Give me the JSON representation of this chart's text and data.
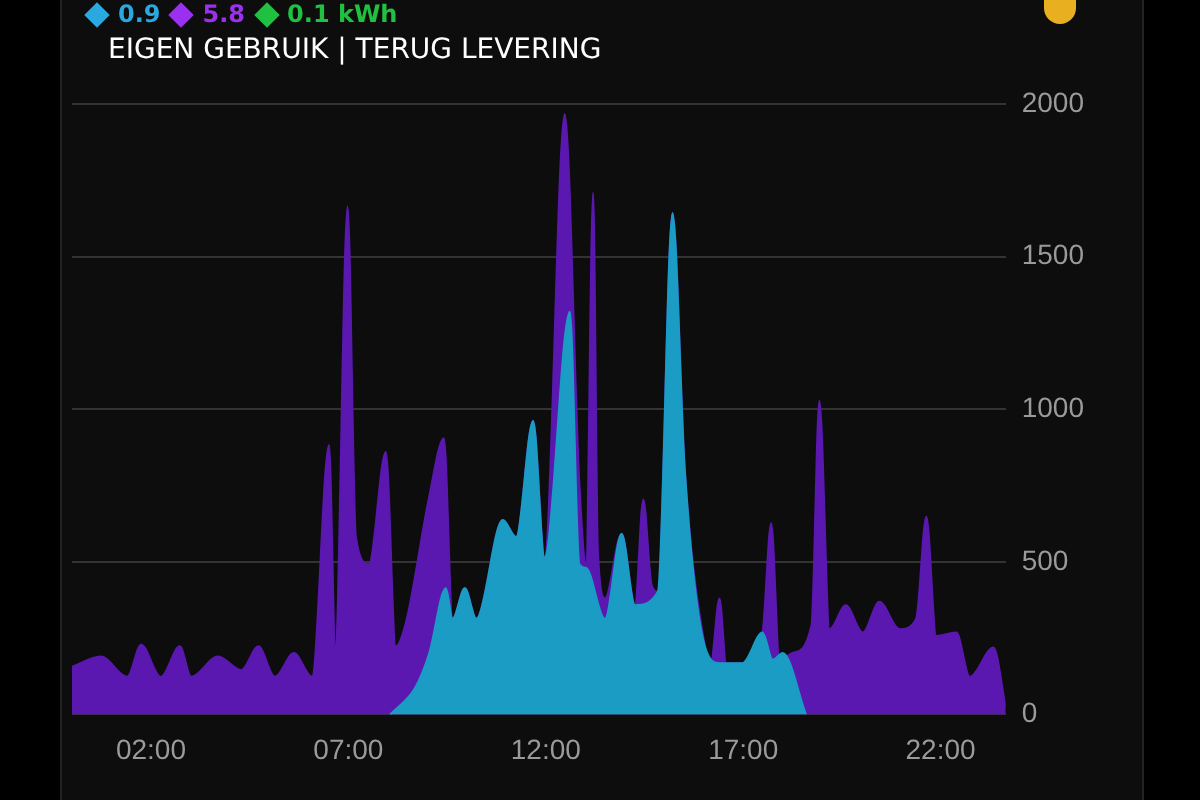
{
  "chart_data": {
    "type": "area",
    "annotations": [
      "0.9",
      "5.8",
      "0.1 kWh",
      "EIGEN GEBRUIK | TERUG LEVERING"
    ],
    "xlim": [
      0,
      23.65
    ],
    "xticks": [
      {
        "value": 2,
        "label": "02:00"
      },
      {
        "value": 7,
        "label": "07:00"
      },
      {
        "value": 12,
        "label": "12:00"
      },
      {
        "value": 17,
        "label": "17:00"
      },
      {
        "value": 22,
        "label": "22:00"
      }
    ],
    "ylim": [
      0,
      2000
    ],
    "yticks": [
      0,
      500,
      1000,
      1500,
      2000
    ],
    "grid": "y",
    "series": [
      {
        "color": "#5a18b0",
        "x": [
          0,
          0.73,
          1.4,
          1.75,
          2.25,
          2.73,
          3.02,
          3.7,
          4.29,
          4.72,
          5.14,
          5.62,
          6.08,
          6.51,
          6.67,
          6.98,
          7.19,
          7.52,
          7.95,
          8.2,
          8.46,
          9.05,
          9.42,
          9.64,
          9.95,
          10.24,
          10.91,
          11.25,
          11.68,
          11.97,
          12.48,
          12.85,
          13.02,
          13.2,
          13.32,
          13.5,
          13.92,
          14.26,
          14.47,
          14.68,
          14.84,
          15.21,
          15.52,
          16.03,
          16.18,
          16.4,
          16.57,
          17.07,
          17.49,
          17.71,
          17.92,
          18.25,
          18.73,
          18.93,
          19.19,
          19.6,
          20.03,
          20.45,
          20.96,
          21.38,
          21.64,
          21.89,
          22.4,
          22.74,
          23.34,
          23.65
        ],
        "values": [
          156,
          190,
          123,
          228,
          123,
          223,
          123,
          190,
          145,
          223,
          123,
          201,
          123,
          883,
          223,
          1665,
          581,
          492,
          860,
          223,
          302,
          715,
          905,
          313,
          413,
          313,
          637,
          581,
          961,
          514,
          1967,
          760,
          492,
          1710,
          536,
          380,
          592,
          358,
          704,
          425,
          402,
          1643,
          805,
          223,
          168,
          380,
          168,
          168,
          268,
          626,
          179,
          201,
          291,
          1028,
          279,
          358,
          268,
          369,
          279,
          313,
          648,
          257,
          268,
          123,
          219,
          22
        ]
      },
      {
        "color": "#1a9cc4",
        "x": [
          8.06,
          8.7,
          9.05,
          9.47,
          9.64,
          9.95,
          10.24,
          10.91,
          11.25,
          11.68,
          11.97,
          12.61,
          12.85,
          13.02,
          13.5,
          13.92,
          14.26,
          14.84,
          15.21,
          15.52,
          16.03,
          16.4,
          16.98,
          17.49,
          17.75,
          18.0,
          18.59
        ],
        "values": [
          0,
          89,
          201,
          413,
          313,
          413,
          313,
          637,
          581,
          961,
          514,
          1319,
          492,
          480,
          313,
          592,
          358,
          402,
          1643,
          805,
          223,
          168,
          168,
          268,
          179,
          201,
          0
        ]
      }
    ]
  }
}
